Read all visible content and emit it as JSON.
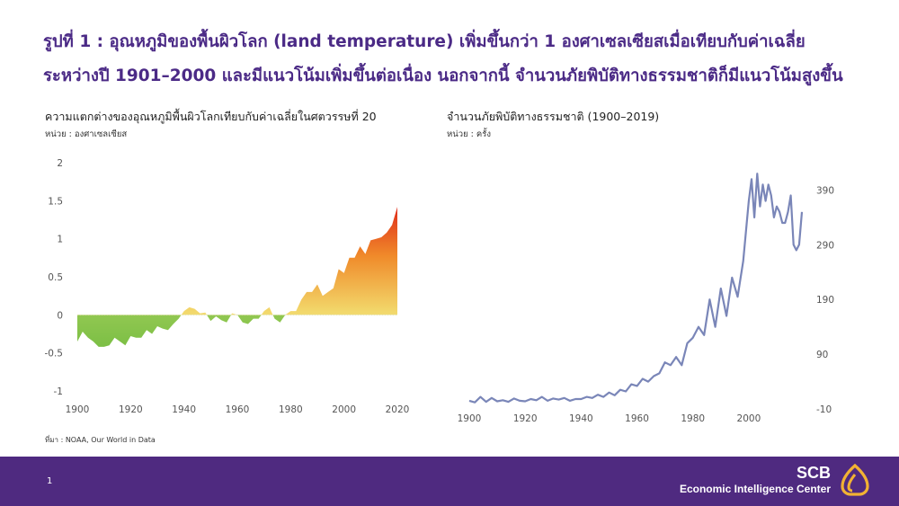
{
  "title": {
    "line1": "รูปที่ 1 : อุณหภูมิของพื้นผิวโลก (land temperature) เพิ่มขึ้นกว่า 1 องศาเซลเซียสเมื่อเทียบกับค่าเฉลี่ย",
    "line2": "ระหว่างปี 1901–2000 และมีแนวโน้มเพิ่มขึ้นต่อเนื่อง นอกจากนี้ จำนวนภัยพิบัติทางธรรมชาติก็มีแนวโน้มสูงขึ้น"
  },
  "source": "ที่มา :  NOAA, Our World in Data",
  "footer": {
    "page": "1",
    "brand": "SCB",
    "center": "Economic Intelligence Center"
  },
  "colors": {
    "purple": "#4f2a80",
    "line": "#7a86b8",
    "warm_high": "#e8401c",
    "warm_low": "#f0e27a",
    "cool": "#8fc64a",
    "logo": "#f2b233"
  },
  "chart_data": [
    {
      "type": "area",
      "title": "ความแตกต่างของอุณหภูมิพื้นผิวโลกเทียบกับค่าเฉลี่ยในศตวรรษที่ 20",
      "unit": "หน่วย : องศาเซลเซียส",
      "ylim": [
        -1,
        2
      ],
      "yticks": [
        "2",
        "1.5",
        "1",
        "0.5",
        "0",
        "-0.5",
        "-1"
      ],
      "xlim": [
        1900,
        2020
      ],
      "xticks": [
        "1900",
        "1920",
        "1940",
        "1960",
        "1980",
        "2000",
        "2020"
      ],
      "gradient": "red to yellow above zero, green below zero",
      "x": [
        1900,
        1902,
        1904,
        1906,
        1908,
        1910,
        1912,
        1914,
        1916,
        1918,
        1920,
        1922,
        1924,
        1926,
        1928,
        1930,
        1932,
        1934,
        1936,
        1938,
        1940,
        1942,
        1944,
        1946,
        1948,
        1950,
        1952,
        1954,
        1956,
        1958,
        1960,
        1962,
        1964,
        1966,
        1968,
        1970,
        1972,
        1974,
        1976,
        1978,
        1980,
        1982,
        1984,
        1986,
        1988,
        1990,
        1992,
        1994,
        1996,
        1998,
        2000,
        2002,
        2004,
        2006,
        2008,
        2010,
        2012,
        2014,
        2016,
        2018,
        2020
      ],
      "y": [
        -0.35,
        -0.22,
        -0.3,
        -0.35,
        -0.42,
        -0.42,
        -0.4,
        -0.3,
        -0.35,
        -0.4,
        -0.28,
        -0.3,
        -0.3,
        -0.2,
        -0.25,
        -0.15,
        -0.18,
        -0.2,
        -0.12,
        -0.05,
        0.05,
        0.1,
        0.08,
        0.02,
        0.03,
        -0.08,
        -0.02,
        -0.07,
        -0.1,
        0.02,
        0.0,
        -0.1,
        -0.12,
        -0.05,
        -0.05,
        0.05,
        0.1,
        -0.05,
        -0.1,
        0.0,
        0.05,
        0.05,
        0.2,
        0.3,
        0.3,
        0.4,
        0.25,
        0.3,
        0.35,
        0.6,
        0.55,
        0.75,
        0.75,
        0.9,
        0.8,
        0.98,
        1.0,
        1.02,
        1.08,
        1.18,
        1.42
      ]
    },
    {
      "type": "line",
      "title": "จำนวนภัยพิบัติทางธรรมชาติ (1900–2019)",
      "unit": "หน่วย : ครั้ง",
      "ylim": [
        -10,
        440
      ],
      "yticks": [
        "390",
        "290",
        "190",
        "90",
        "-10"
      ],
      "xlim": [
        1900,
        2019
      ],
      "xticks": [
        "1900",
        "1920",
        "1940",
        "1960",
        "1980",
        "2000"
      ],
      "x": [
        1900,
        1902,
        1904,
        1906,
        1908,
        1910,
        1912,
        1914,
        1916,
        1918,
        1920,
        1922,
        1924,
        1926,
        1928,
        1930,
        1932,
        1934,
        1936,
        1938,
        1940,
        1942,
        1944,
        1946,
        1948,
        1950,
        1952,
        1954,
        1956,
        1958,
        1960,
        1962,
        1964,
        1966,
        1968,
        1970,
        1972,
        1974,
        1976,
        1978,
        1980,
        1982,
        1984,
        1986,
        1988,
        1990,
        1992,
        1994,
        1996,
        1998,
        2000,
        2001,
        2002,
        2003,
        2004,
        2005,
        2006,
        2007,
        2008,
        2009,
        2010,
        2011,
        2012,
        2013,
        2014,
        2015,
        2016,
        2017,
        2018,
        2019
      ],
      "y": [
        5,
        2,
        12,
        3,
        10,
        4,
        6,
        3,
        9,
        5,
        4,
        8,
        6,
        12,
        5,
        9,
        7,
        10,
        5,
        8,
        8,
        12,
        10,
        16,
        12,
        20,
        15,
        25,
        22,
        35,
        32,
        45,
        40,
        50,
        55,
        75,
        70,
        85,
        70,
        110,
        120,
        140,
        125,
        190,
        140,
        210,
        160,
        230,
        195,
        260,
        370,
        410,
        340,
        420,
        360,
        400,
        370,
        400,
        380,
        340,
        360,
        350,
        330,
        330,
        350,
        380,
        290,
        280,
        290,
        350
      ]
    }
  ]
}
